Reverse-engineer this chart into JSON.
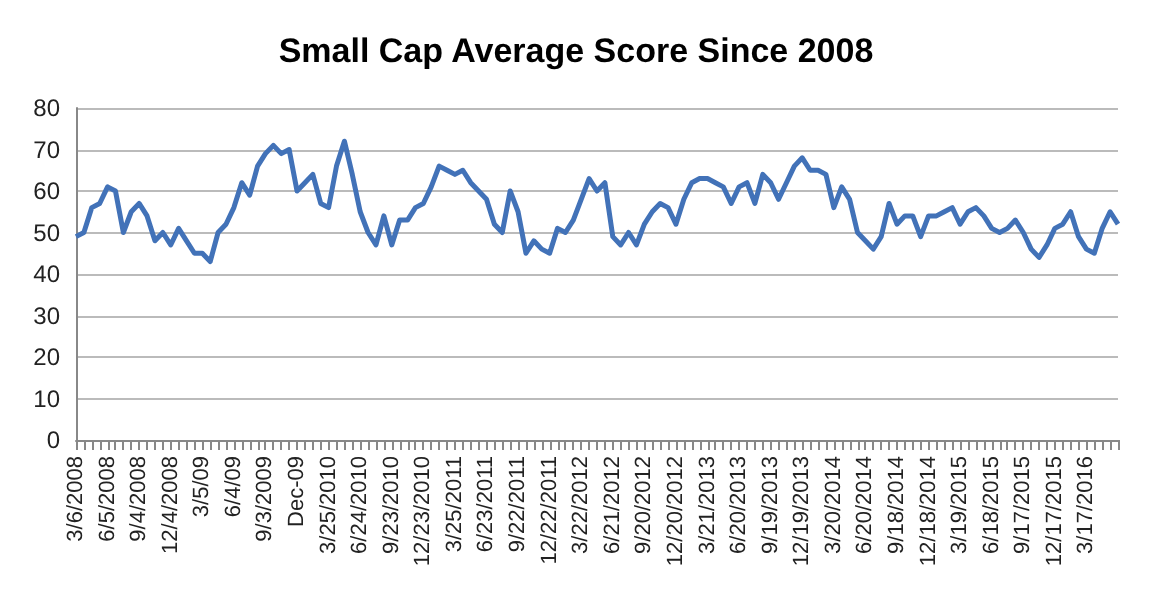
{
  "chart_data": {
    "type": "line",
    "title": "Small Cap Average Score Since 2008",
    "categories": [
      "3/6/2008",
      null,
      null,
      null,
      "6/5/2008",
      null,
      null,
      null,
      "9/4/2008",
      null,
      null,
      null,
      "12/4/2008",
      null,
      null,
      null,
      "3/5/09",
      null,
      null,
      null,
      "6/4/09",
      null,
      null,
      null,
      "9/3/2009",
      null,
      null,
      null,
      "Dec-09",
      null,
      null,
      null,
      "3/25/2010",
      null,
      null,
      null,
      "6/24/2010",
      null,
      null,
      null,
      "9/23/2010",
      null,
      null,
      null,
      "12/23/2010",
      null,
      null,
      null,
      "3/25/2011",
      null,
      null,
      null,
      "6/23/2011",
      null,
      null,
      null,
      "9/22/2011",
      null,
      null,
      null,
      "12/22/2011",
      null,
      null,
      null,
      "3/22/2012",
      null,
      null,
      null,
      "6/21/2012",
      null,
      null,
      null,
      "9/20/2012",
      null,
      null,
      null,
      "12/20/2012",
      null,
      null,
      null,
      "3/21/2013",
      null,
      null,
      null,
      "6/20/2013",
      null,
      null,
      null,
      "9/19/2013",
      null,
      null,
      null,
      "12/19/2013",
      null,
      null,
      null,
      "3/20/2014",
      null,
      null,
      null,
      "6/20/2014",
      null,
      null,
      null,
      "9/18/2014",
      null,
      null,
      null,
      "12/18/2014",
      null,
      null,
      null,
      "3/19/2015",
      null,
      null,
      null,
      "6/18/2015",
      null,
      null,
      null,
      "9/17/2015",
      null,
      null,
      null,
      "12/17/2015",
      null,
      null,
      null,
      "3/17/2016",
      null,
      null,
      null,
      null
    ],
    "series": [
      {
        "color": "#4272b8",
        "values": [
          49,
          50,
          56,
          57,
          61,
          60,
          50,
          55,
          57,
          54,
          48,
          50,
          47,
          51,
          48,
          45,
          45,
          43,
          50,
          52,
          56,
          62,
          59,
          66,
          69,
          71,
          69,
          70,
          60,
          62,
          64,
          57,
          56,
          66,
          72,
          64,
          55,
          50,
          47,
          54,
          47,
          53,
          53,
          56,
          57,
          61,
          66,
          65,
          64,
          65,
          62,
          60,
          58,
          52,
          50,
          60,
          55,
          45,
          48,
          46,
          45,
          51,
          50,
          53,
          58,
          63,
          60,
          62,
          49,
          47,
          50,
          47,
          52,
          55,
          57,
          56,
          52,
          58,
          62,
          63,
          63,
          62,
          61,
          57,
          61,
          62,
          57,
          64,
          62,
          58,
          62,
          66,
          68,
          65,
          65,
          64,
          56,
          61,
          58,
          50,
          48,
          46,
          49,
          57,
          52,
          54,
          54,
          49,
          54,
          54,
          55,
          56,
          52,
          55,
          56,
          54,
          51,
          50,
          51,
          53,
          50,
          46,
          44,
          47,
          51,
          52,
          55,
          49,
          46,
          45,
          51,
          55,
          52
        ]
      }
    ],
    "ylim": [
      0,
      80
    ],
    "yticks": [
      0,
      10,
      20,
      30,
      40,
      50,
      60,
      70,
      80
    ],
    "grid": "y",
    "marker": "none",
    "line_style": "solid"
  }
}
